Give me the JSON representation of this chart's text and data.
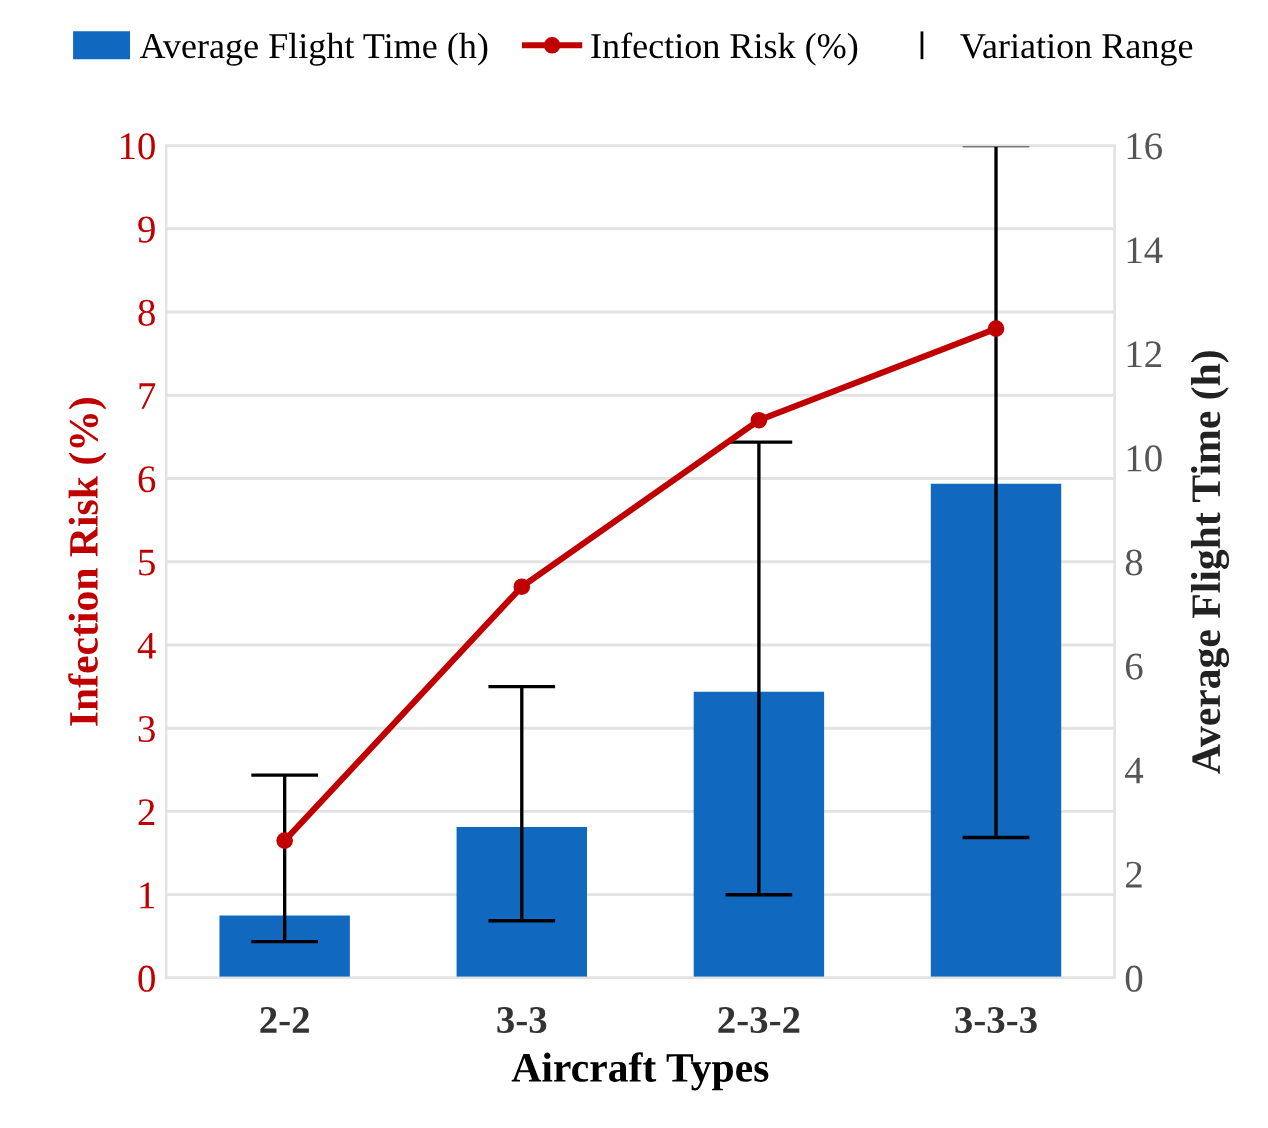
{
  "chart_data": {
    "type": "bar",
    "xlabel": "Aircraft Types",
    "ylabel": "Infection Risk (%)",
    "y2label": "Average Flight Time (h)",
    "categories": [
      "2-2",
      "3-3",
      "2-3-2",
      "3-3-3"
    ],
    "series": [
      {
        "name": "Average Flight Time (h)",
        "axis": "y2",
        "color": "#1068bf",
        "values": [
          1.2,
          2.9,
          5.5,
          9.5
        ],
        "errors": [
          [
            0.7,
            3.9
          ],
          [
            1.1,
            5.6
          ],
          [
            1.6,
            10.3
          ],
          [
            2.7,
            16.0
          ]
        ]
      },
      {
        "name": "Infection Risk (%)",
        "type": "line",
        "axis": "y",
        "color": "#c00000",
        "values": [
          1.65,
          4.7,
          6.7,
          7.8
        ],
        "marker": "circle",
        "line_style": "solid"
      }
    ],
    "annotations": [
      "Variation Range"
    ],
    "ylim": [
      0,
      10
    ],
    "yticks": [
      0,
      1,
      2,
      3,
      4,
      5,
      6,
      7,
      8,
      9,
      10
    ],
    "y2lim": [
      0,
      16
    ],
    "y2ticks": [
      0,
      2,
      4,
      6,
      8,
      10,
      12,
      14,
      16
    ],
    "grid": "y",
    "legend": "top"
  }
}
